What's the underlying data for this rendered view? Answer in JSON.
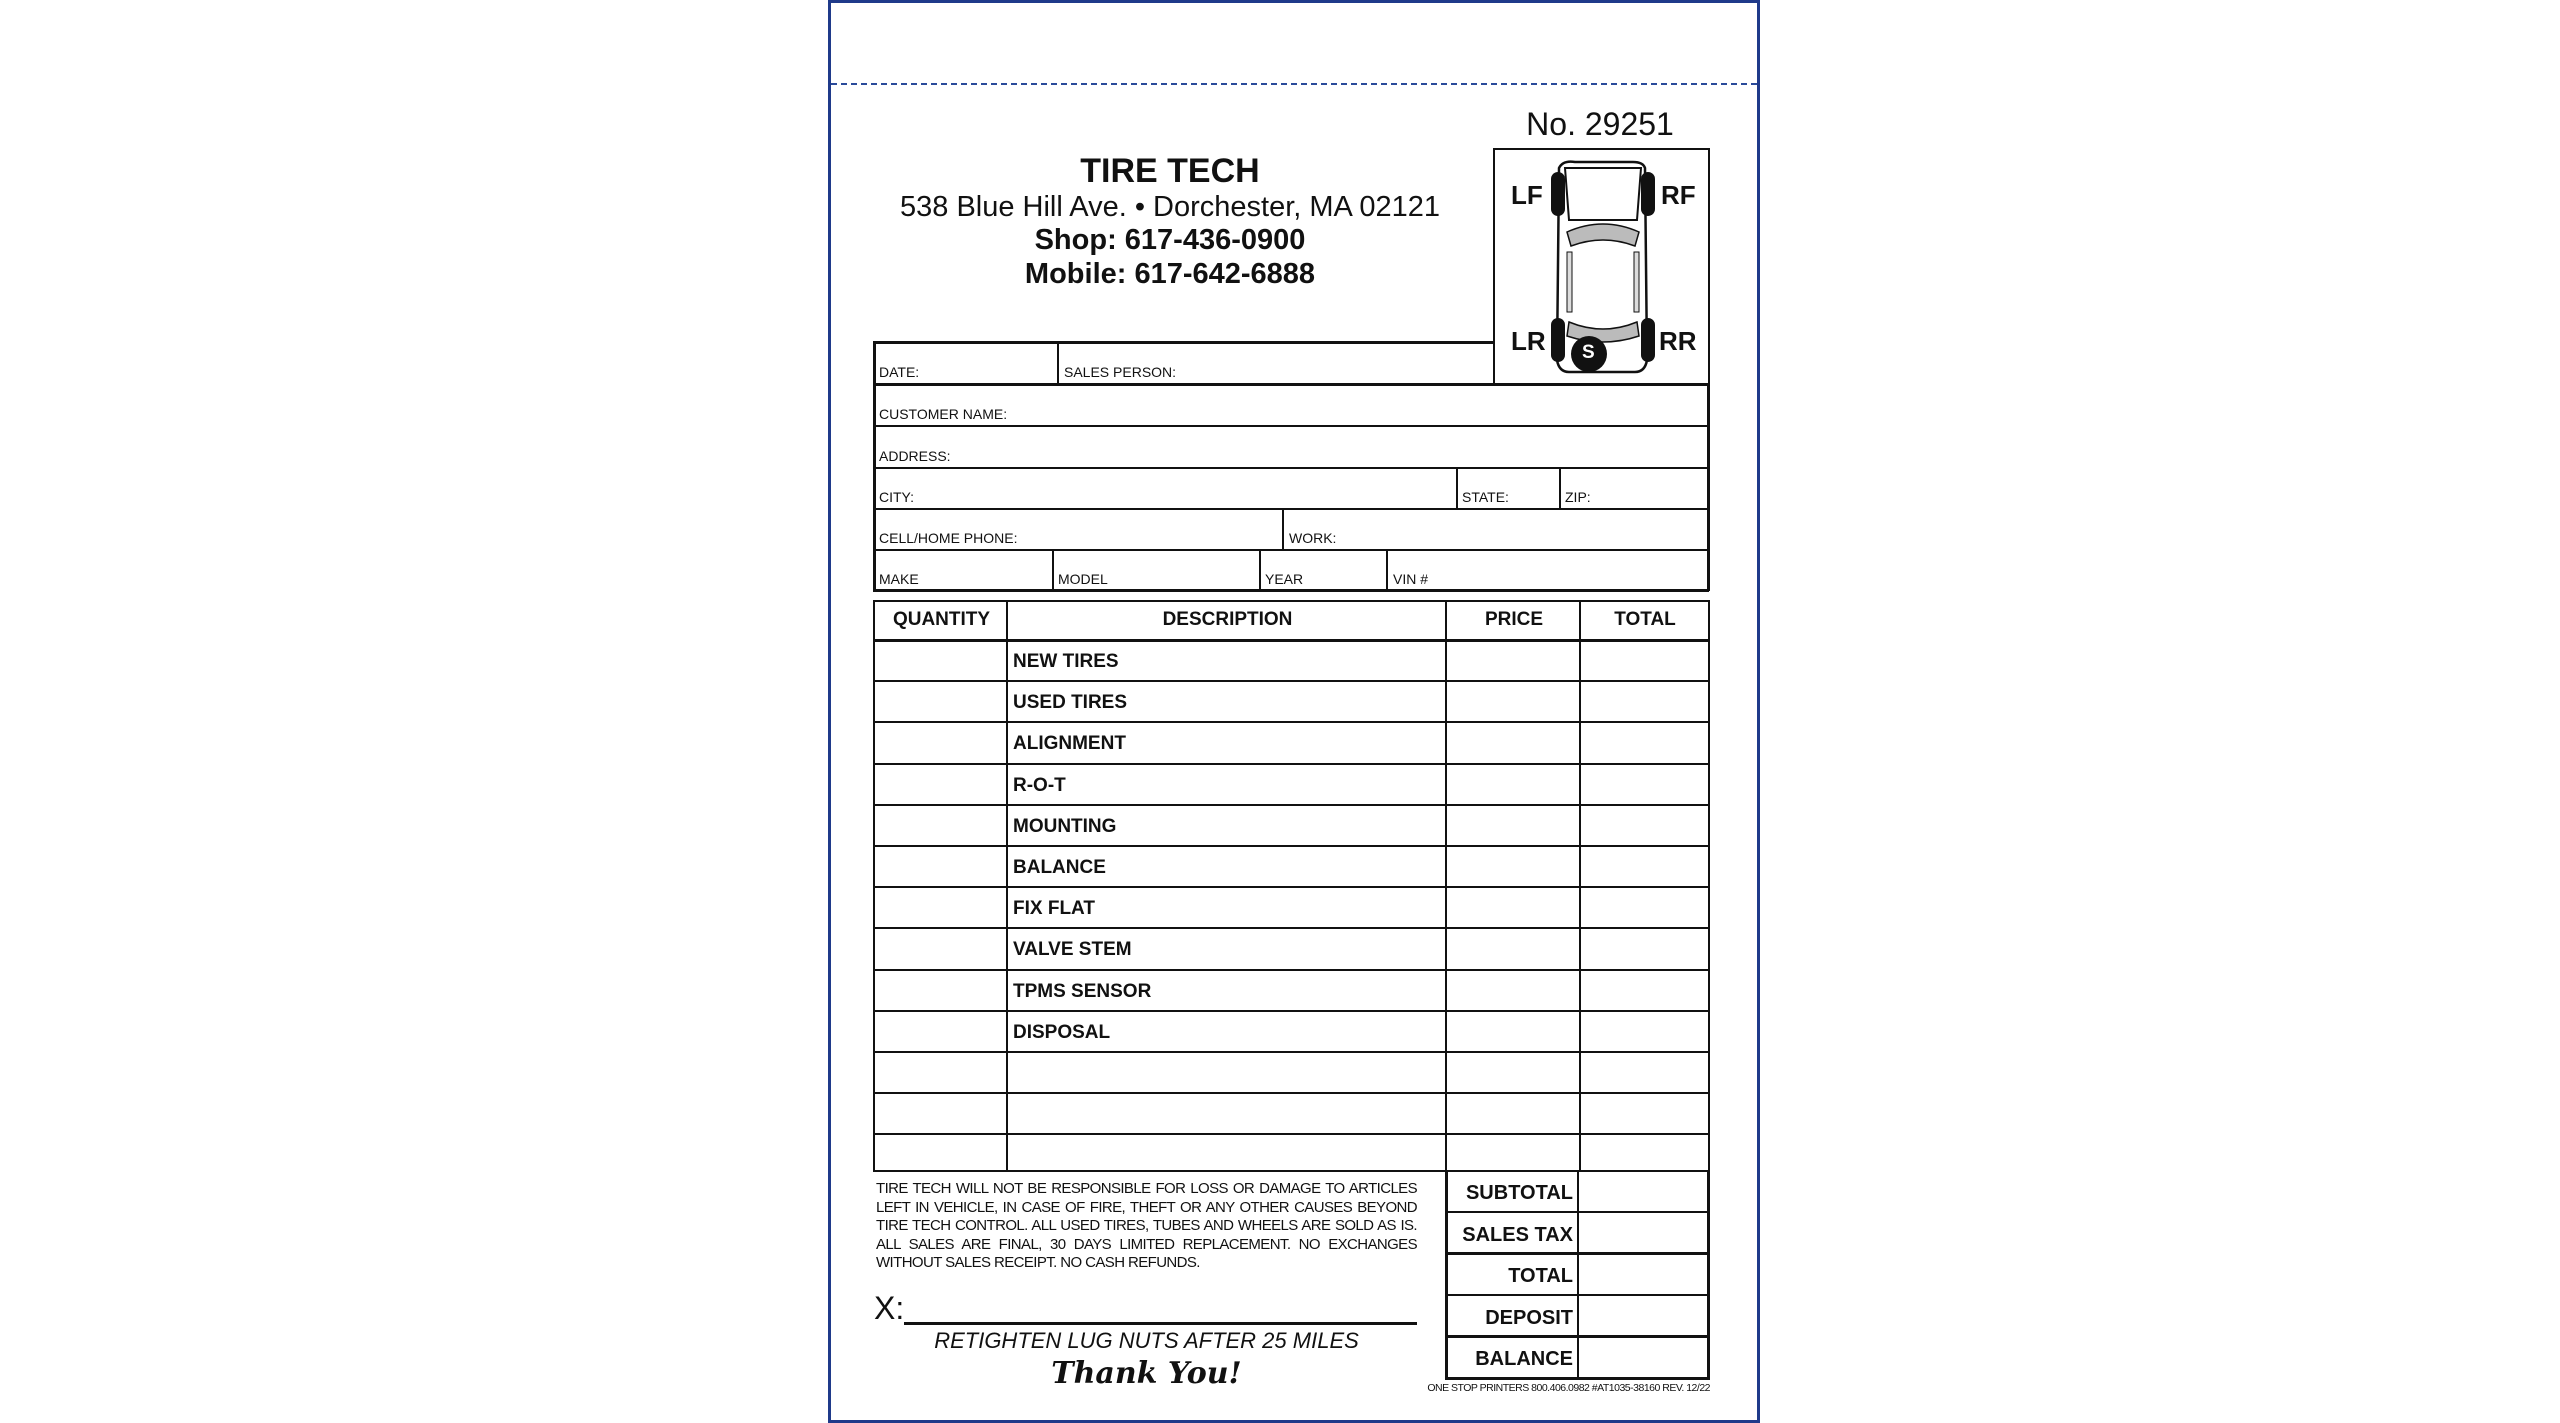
{
  "header": {
    "number": "No. 29251",
    "business_name": "TIRE TECH",
    "address": "538 Blue Hill Ave. • Dorchester, MA 02121",
    "shop_phone": "Shop: 617-436-0900",
    "mobile_phone": "Mobile: 617-642-6888"
  },
  "tire_diagram": {
    "lf": "LF",
    "rf": "RF",
    "lr": "LR",
    "rr": "RR",
    "spare": "S"
  },
  "fields": {
    "date": "DATE:",
    "sales_person": "SALES PERSON:",
    "customer_name": "CUSTOMER NAME:",
    "address": "ADDRESS:",
    "city": "CITY:",
    "state": "STATE:",
    "zip": "ZIP:",
    "phone": "CELL/HOME PHONE:",
    "work": "WORK:",
    "make": "MAKE",
    "model": "MODEL",
    "year": "YEAR",
    "vin": "VIN #"
  },
  "items_table": {
    "headers": [
      "QUANTITY",
      "DESCRIPTION",
      "PRICE",
      "TOTAL"
    ],
    "rows": [
      "NEW TIRES",
      "USED TIRES",
      "ALIGNMENT",
      "R-O-T",
      "MOUNTING",
      "BALANCE",
      "FIX FLAT",
      "VALVE STEM",
      "TPMS SENSOR",
      "DISPOSAL",
      "",
      "",
      ""
    ]
  },
  "totals": [
    "SUBTOTAL",
    "SALES TAX",
    "TOTAL",
    "DEPOSIT",
    "BALANCE"
  ],
  "disclaimer": "TIRE TECH WILL NOT BE RESPONSIBLE FOR LOSS OR DAMAGE TO ARTICLES LEFT IN VEHICLE, IN CASE OF FIRE, THEFT OR ANY OTHER CAUSES BEYOND TIRE TECH CONTROL. ALL USED TIRES, TUBES AND WHEELS ARE SOLD AS IS. ALL SALES ARE FINAL, 30 DAYS LIMITED REPLACEMENT. NO EXCHANGES WITHOUT SALES RECEIPT. NO CASH REFUNDS.",
  "signature_label": "X:",
  "reminder": "RETIGHTEN LUG NUTS AFTER 25 MILES",
  "thank_you": "Thank You!",
  "printer_footer": "ONE STOP PRINTERS 800.406.0982 #AT1035-38160 REV. 12/22",
  "colors": {
    "border": "#1f3a8a",
    "ink": "#111111"
  }
}
